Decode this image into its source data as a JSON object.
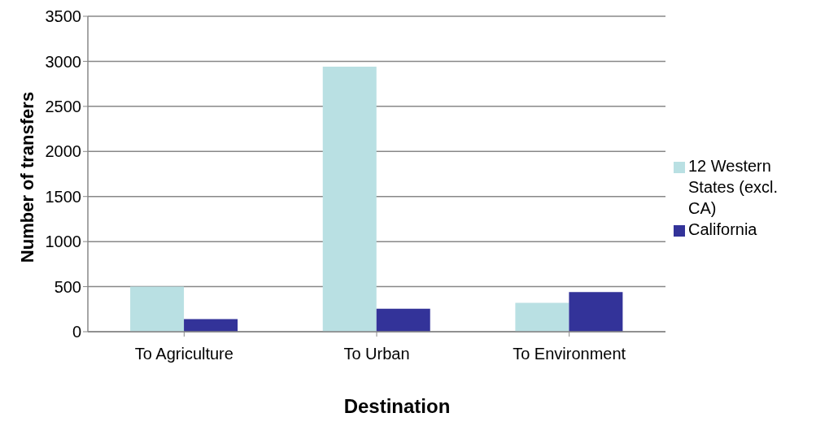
{
  "chart_data": {
    "type": "bar",
    "xlabel": "Destination",
    "ylabel": "Number of transfers",
    "categories": [
      "To Agriculture",
      "To Urban",
      "To Environment"
    ],
    "series": [
      {
        "name": "12 Western States (excl. CA)",
        "color": "#b9e0e3",
        "values": [
          500,
          2940,
          320
        ]
      },
      {
        "name": "California",
        "color": "#333399",
        "values": [
          140,
          255,
          440
        ]
      }
    ],
    "ylim": [
      0,
      3500
    ],
    "yticks": [
      0,
      500,
      1000,
      1500,
      2000,
      2500,
      3000,
      3500
    ],
    "grid": "y",
    "legend": "right"
  }
}
